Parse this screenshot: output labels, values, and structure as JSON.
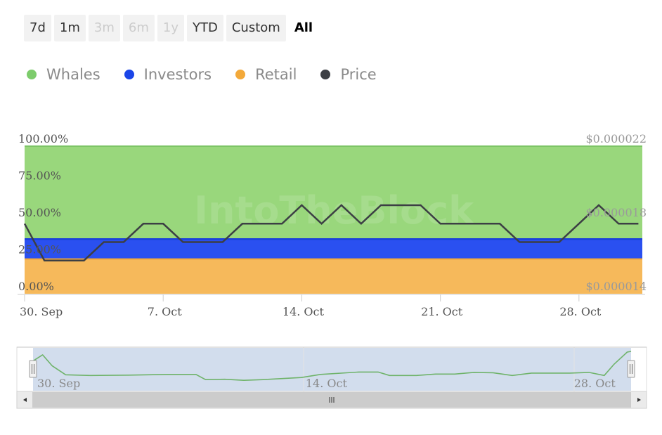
{
  "range_selector": {
    "buttons": [
      {
        "label": "7d",
        "state": "normal"
      },
      {
        "label": "1m",
        "state": "normal"
      },
      {
        "label": "3m",
        "state": "disabled"
      },
      {
        "label": "6m",
        "state": "disabled"
      },
      {
        "label": "1y",
        "state": "disabled"
      },
      {
        "label": "YTD",
        "state": "normal"
      },
      {
        "label": "Custom",
        "state": "normal"
      },
      {
        "label": "All",
        "state": "active"
      }
    ]
  },
  "legend": {
    "items": [
      {
        "label": "Whales",
        "color": "#7dcc6c"
      },
      {
        "label": "Investors",
        "color": "#1a45e8"
      },
      {
        "label": "Retail",
        "color": "#f3a93a"
      },
      {
        "label": "Price",
        "color": "#3c3f44"
      }
    ]
  },
  "watermark_text": "IntoTheBlock",
  "chart_data": {
    "type": "area",
    "x_ticks": [
      "30. Sep",
      "7. Oct",
      "14. Oct",
      "21. Oct",
      "28. Oct"
    ],
    "x_tick_days": [
      0,
      7,
      14,
      21,
      28
    ],
    "x_range_days": [
      0,
      31.2
    ],
    "y_left": {
      "ticks": [
        "100.00%",
        "75.00%",
        "50.00%",
        "25.00%",
        "0.00%"
      ],
      "range": [
        0,
        100
      ]
    },
    "y_right": {
      "ticks": [
        "$0.000022",
        "$0.000018",
        "$0.000014"
      ],
      "range": [
        1.4e-05,
        2.2e-05
      ]
    },
    "series": [
      {
        "name": "Retail",
        "color": "#f6b95b",
        "type": "stacked-area",
        "value_pct": 23.5
      },
      {
        "name": "Investors",
        "color": "#2a50f0",
        "type": "stacked-area",
        "value_pct": 13.5
      },
      {
        "name": "Whales",
        "color": "#99d77c",
        "type": "stacked-area",
        "value_pct": 63.0
      },
      {
        "name": "Price",
        "color": "#3c3f44",
        "type": "line",
        "axis": "right",
        "points": [
          [
            0,
            1.78e-05
          ],
          [
            1,
            1.58e-05
          ],
          [
            2,
            1.58e-05
          ],
          [
            3,
            1.58e-05
          ],
          [
            4,
            1.68e-05
          ],
          [
            5,
            1.68e-05
          ],
          [
            6,
            1.78e-05
          ],
          [
            7,
            1.78e-05
          ],
          [
            8,
            1.68e-05
          ],
          [
            9,
            1.68e-05
          ],
          [
            10,
            1.68e-05
          ],
          [
            11,
            1.78e-05
          ],
          [
            12,
            1.78e-05
          ],
          [
            13,
            1.78e-05
          ],
          [
            14,
            1.88e-05
          ],
          [
            15,
            1.78e-05
          ],
          [
            16,
            1.88e-05
          ],
          [
            17,
            1.78e-05
          ],
          [
            18,
            1.88e-05
          ],
          [
            19,
            1.88e-05
          ],
          [
            20,
            1.88e-05
          ],
          [
            21,
            1.78e-05
          ],
          [
            22,
            1.78e-05
          ],
          [
            23,
            1.78e-05
          ],
          [
            24,
            1.78e-05
          ],
          [
            25,
            1.68e-05
          ],
          [
            26,
            1.68e-05
          ],
          [
            27,
            1.68e-05
          ],
          [
            28,
            1.78e-05
          ],
          [
            29,
            1.88e-05
          ],
          [
            30,
            1.78e-05
          ],
          [
            31,
            1.78e-05
          ]
        ]
      }
    ],
    "navigator": {
      "labels": [
        "30. Sep",
        "14. Oct",
        "28. Oct"
      ],
      "label_days": [
        0,
        14,
        28
      ],
      "series_color": "#6fb36a",
      "points": [
        [
          0,
          0.72
        ],
        [
          0.5,
          0.9
        ],
        [
          1,
          0.58
        ],
        [
          1.7,
          0.32
        ],
        [
          3,
          0.3
        ],
        [
          5,
          0.31
        ],
        [
          7,
          0.33
        ],
        [
          8.5,
          0.33
        ],
        [
          9,
          0.18
        ],
        [
          10,
          0.19
        ],
        [
          11,
          0.16
        ],
        [
          12,
          0.18
        ],
        [
          14,
          0.24
        ],
        [
          15,
          0.33
        ],
        [
          17,
          0.4
        ],
        [
          18,
          0.4
        ],
        [
          18.6,
          0.3
        ],
        [
          20,
          0.3
        ],
        [
          21,
          0.34
        ],
        [
          22,
          0.34
        ],
        [
          23,
          0.39
        ],
        [
          24,
          0.38
        ],
        [
          25,
          0.3
        ],
        [
          26,
          0.37
        ],
        [
          28,
          0.37
        ],
        [
          29,
          0.39
        ],
        [
          29.8,
          0.3
        ],
        [
          30.3,
          0.62
        ],
        [
          31,
          0.98
        ],
        [
          31.2,
          1.0
        ]
      ]
    }
  }
}
